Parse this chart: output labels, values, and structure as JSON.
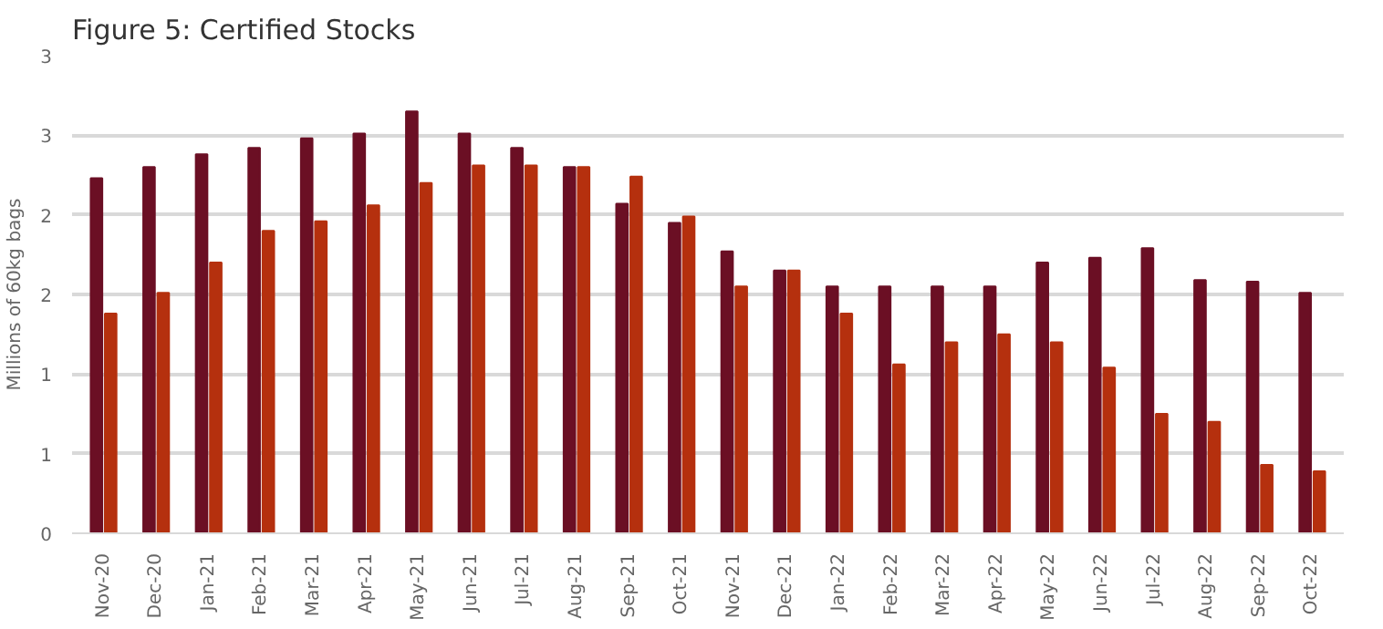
{
  "chart_data": {
    "type": "bar",
    "title": "Figure 5: Certified Stocks",
    "ylabel": "Millions of 60kg bags",
    "categories": [
      "Nov-20",
      "Dec-20",
      "Jan-21",
      "Feb-21",
      "Mar-21",
      "Apr-21",
      "May-21",
      "Jun-21",
      "Jul-21",
      "Aug-21",
      "Sep-21",
      "Oct-21",
      "Nov-21",
      "Dec-21",
      "Jan-22",
      "Feb-22",
      "Mar-22",
      "Apr-22",
      "May-22",
      "Jun-22",
      "Jul-22",
      "Aug-22",
      "Sep-22",
      "Oct-22"
    ],
    "series": [
      {
        "color": "#6b0f24",
        "values": [
          2.23,
          2.3,
          2.38,
          2.42,
          2.48,
          2.51,
          2.65,
          2.51,
          2.42,
          2.3,
          2.07,
          1.95,
          1.77,
          1.65,
          1.55,
          1.55,
          1.55,
          1.55,
          1.7,
          1.73,
          1.79,
          1.59,
          1.58,
          1.51
        ]
      },
      {
        "color": "#b5300e",
        "values": [
          1.38,
          1.51,
          1.7,
          1.9,
          1.96,
          2.06,
          2.2,
          2.31,
          2.31,
          2.3,
          2.24,
          1.99,
          1.55,
          1.65,
          1.38,
          1.06,
          1.2,
          1.25,
          1.2,
          1.04,
          0.75,
          0.7,
          0.43,
          0.39
        ]
      }
    ],
    "ylim": [
      0,
      3
    ],
    "yticks": [
      0,
      {
        "value": 0.5,
        "label": "1"
      },
      1,
      {
        "value": 1.5,
        "label": "2"
      },
      2,
      {
        "value": 2.5,
        "label": "3"
      },
      3
    ],
    "grid": "y"
  }
}
